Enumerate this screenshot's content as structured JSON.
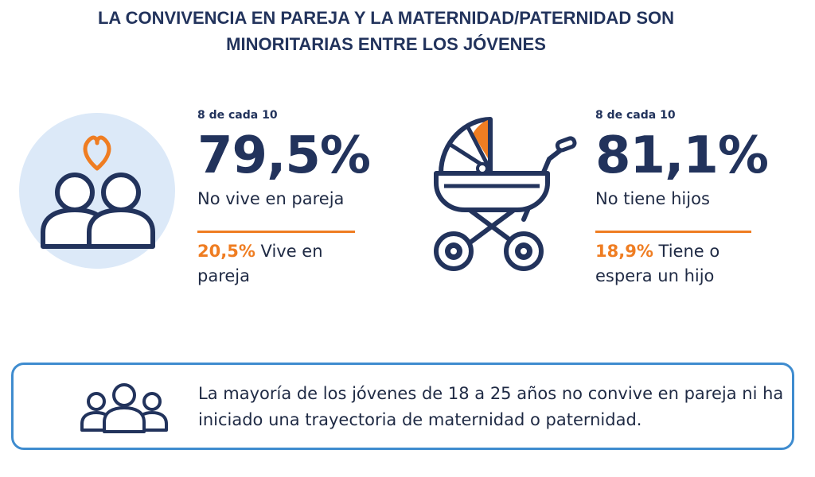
{
  "header": {
    "title_line1": "LA CONVIVENCIA EN PAREJA Y LA MATERNIDAD/PATERNIDAD SON",
    "title_line2": "MINORITARIAS ENTRE LOS JÓVENES"
  },
  "stats": [
    {
      "icon": "couple-heart-icon",
      "ratio": "8 de cada 10",
      "value": "79,5%",
      "label": "No vive en pareja",
      "sub_value": "20,5%",
      "sub_label": " Vive en pareja"
    },
    {
      "icon": "stroller-icon",
      "ratio": "8 de cada 10",
      "value": "81,1%",
      "label": "No tiene hijos",
      "sub_value": "18,9%",
      "sub_label": " Tiene o espera un hijo"
    }
  ],
  "summary": {
    "icon": "group-people-icon",
    "text": "La mayoría de los jóvenes de 18 a 25 años no convive en pareja ni ha iniciado una trayectoria de maternidad o paternidad."
  },
  "colors": {
    "navy": "#22335c",
    "orange": "#ef7d22",
    "light_blue": "#dce9f8",
    "border_blue": "#3f8ccf"
  }
}
